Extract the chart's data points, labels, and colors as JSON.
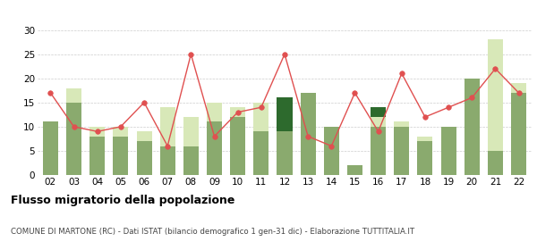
{
  "years": [
    "02",
    "03",
    "04",
    "05",
    "06",
    "07",
    "08",
    "09",
    "10",
    "11",
    "12",
    "13",
    "14",
    "15",
    "16",
    "17",
    "18",
    "19",
    "20",
    "21",
    "22"
  ],
  "iscritti_altri_comuni": [
    11,
    15,
    8,
    8,
    7,
    6,
    6,
    11,
    12,
    9,
    9,
    17,
    10,
    2,
    10,
    10,
    7,
    10,
    20,
    5,
    17
  ],
  "iscritti_estero": [
    0,
    3,
    2,
    2,
    2,
    8,
    6,
    4,
    2,
    6,
    0,
    0,
    0,
    0,
    2,
    1,
    1,
    0,
    0,
    23,
    2
  ],
  "iscritti_altri": [
    0,
    0,
    0,
    0,
    0,
    0,
    0,
    0,
    0,
    0,
    7,
    0,
    0,
    0,
    2,
    0,
    0,
    0,
    0,
    0,
    0
  ],
  "cancellati": [
    17,
    10,
    9,
    10,
    15,
    6,
    25,
    8,
    13,
    14,
    25,
    8,
    6,
    17,
    9,
    21,
    12,
    14,
    16,
    22,
    17
  ],
  "color_altri_comuni": "#8aaa6e",
  "color_estero": "#d8e8b8",
  "color_altri": "#2d6a2d",
  "color_cancellati": "#e05050",
  "title": "Flusso migratorio della popolazione",
  "subtitle": "COMUNE DI MARTONE (RC) - Dati ISTAT (bilancio demografico 1 gen-31 dic) - Elaborazione TUTTITALIA.IT",
  "ylim": [
    0,
    30
  ],
  "yticks": [
    0,
    5,
    10,
    15,
    20,
    25,
    30
  ]
}
